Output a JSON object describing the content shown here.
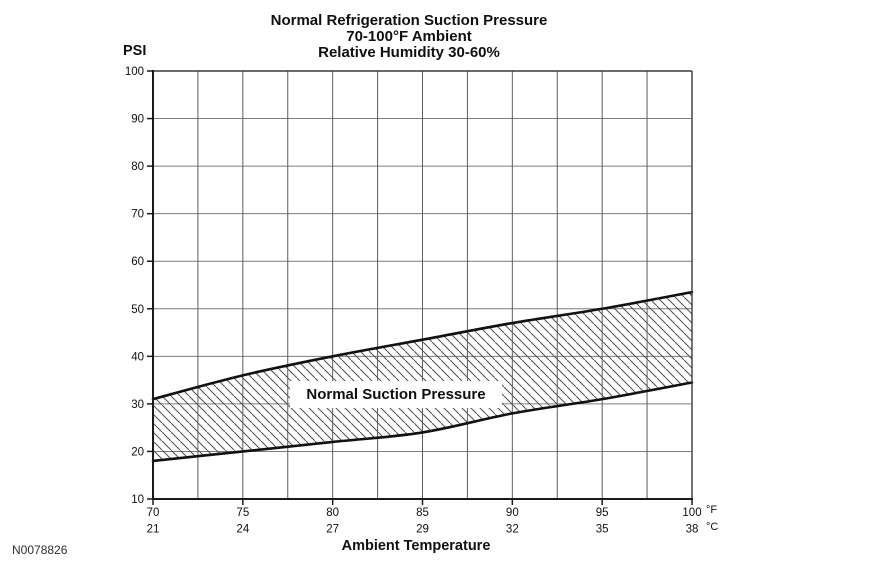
{
  "figure_id": "N0078826",
  "chart_data": {
    "type": "area",
    "title": "Normal Refrigeration Suction Pressure",
    "subtitle_lines": [
      "70-100°F Ambient",
      "Relative Humidity 30-60%"
    ],
    "y_unit": "PSI",
    "xlabel": "Ambient Temperature",
    "band_label": "Normal Suction Pressure",
    "xlim": [
      70,
      100
    ],
    "ylim": [
      10,
      100
    ],
    "x_ticks_f": [
      70,
      75,
      80,
      85,
      90,
      95,
      100
    ],
    "x_ticks_c": [
      21,
      24,
      27,
      29,
      32,
      35,
      38
    ],
    "x_units": {
      "f": "°F",
      "c": "°C"
    },
    "y_ticks": [
      10,
      20,
      30,
      40,
      50,
      60,
      70,
      80,
      90,
      100
    ],
    "x_minor_step": 2.5,
    "grid": true,
    "legend": false,
    "series": [
      {
        "name": "upper-limit",
        "x": [
          70,
          75,
          80,
          85,
          90,
          95,
          100
        ],
        "values": [
          31,
          36,
          40,
          43.5,
          47,
          50,
          53.5
        ]
      },
      {
        "name": "lower-limit",
        "x": [
          70,
          75,
          80,
          85,
          90,
          95,
          100
        ],
        "values": [
          18,
          20,
          22,
          24,
          28,
          31,
          34.5
        ]
      }
    ],
    "colors": {
      "background": "#ffffff",
      "grid_vertical": "#5c5c5c",
      "grid_horizontal": "#7b7b7b",
      "frame": "#3a3a3a",
      "axis": "#1a1a1a",
      "curve": "#111111",
      "hatch": "#4f4f4f",
      "text": "#101010"
    }
  }
}
